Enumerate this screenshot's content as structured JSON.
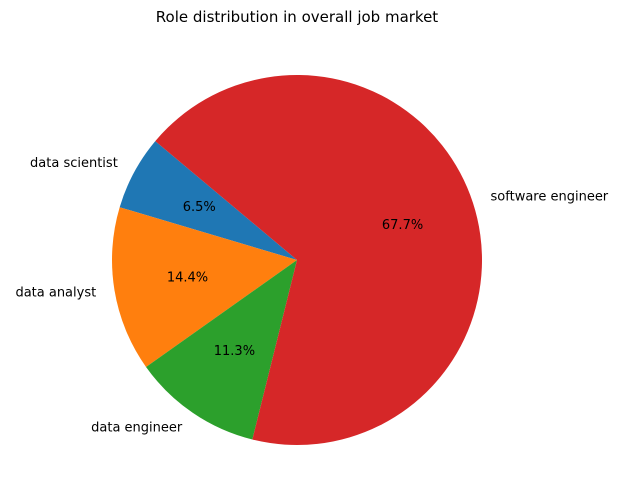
{
  "chart_data": {
    "type": "pie",
    "title": "Role distribution in overall job market",
    "categories": [
      "data scientist",
      "data analyst",
      "data engineer",
      "software engineer"
    ],
    "values": [
      6.5,
      14.4,
      11.3,
      67.7
    ],
    "percent_labels": [
      "6.5%",
      "14.4%",
      "11.3%",
      "67.7%"
    ],
    "colors": [
      "#1f77b4",
      "#ff7f0e",
      "#2ca02c",
      "#d62728"
    ],
    "start_angle_deg": 140,
    "direction": "counterclockwise"
  }
}
